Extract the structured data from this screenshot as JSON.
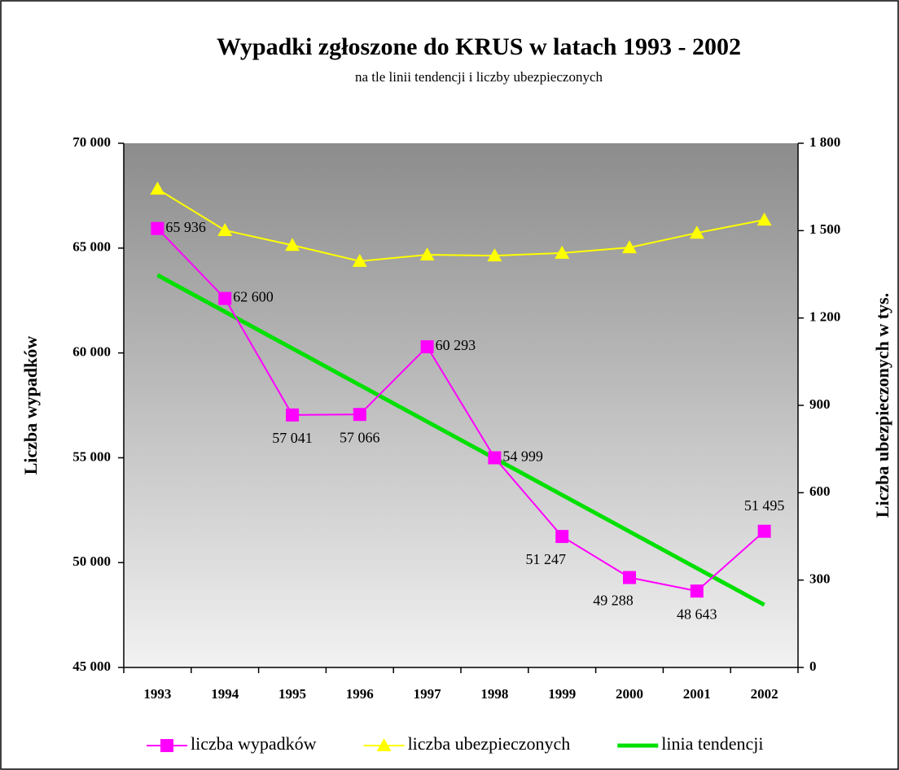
{
  "chart_data": {
    "type": "line",
    "title": "Wypadki zgłoszone do KRUS w latach 1993 - 2002",
    "subtitle": "na tle linii tendencji i liczby ubezpieczonych",
    "ylabel": "Liczba wypadków",
    "y2label": "Liczba ubezpieczonych w tys.",
    "categories": [
      "1993",
      "1994",
      "1995",
      "1996",
      "1997",
      "1998",
      "1999",
      "2000",
      "2001",
      "2002"
    ],
    "ylim": [
      45000,
      70000
    ],
    "yticks": [
      {
        "value": 45000,
        "label": "45 000"
      },
      {
        "value": 50000,
        "label": "50 000"
      },
      {
        "value": 55000,
        "label": "55 000"
      },
      {
        "value": 60000,
        "label": "60 000"
      },
      {
        "value": 65000,
        "label": "65 000"
      },
      {
        "value": 70000,
        "label": "70 000"
      }
    ],
    "y2lim": [
      0,
      1800
    ],
    "y2ticks": [
      0,
      300,
      600,
      900,
      {
        "value": 1200,
        "label": "1 200"
      },
      {
        "value": 1500,
        "label": "1 500"
      },
      {
        "value": 1800,
        "label": "1 800"
      }
    ],
    "series": [
      {
        "name": "liczba wypadków",
        "color": "#ff00ff",
        "marker": "square",
        "values": [
          65936,
          62600,
          57041,
          57066,
          60293,
          54999,
          51247,
          49288,
          48643,
          51495
        ],
        "value_labels": [
          "65 936",
          "62 600",
          "57 041",
          "57 066",
          "60 293",
          "54 999",
          "51 247",
          "49 288",
          "48 643",
          "51 495"
        ]
      },
      {
        "name": "liczba ubezpieczonych",
        "color": "#ffff00",
        "marker": "triangle",
        "axis": "y2",
        "values": [
          1643,
          1501,
          1450,
          1395,
          1417,
          1414,
          1423,
          1442,
          1492,
          1537
        ]
      },
      {
        "name": "linia tendencji",
        "color": "#00e000",
        "values": [
          63711,
          61964,
          60217,
          58470,
          56723,
          54976,
          53229,
          51482,
          49735,
          47988
        ]
      }
    ]
  }
}
